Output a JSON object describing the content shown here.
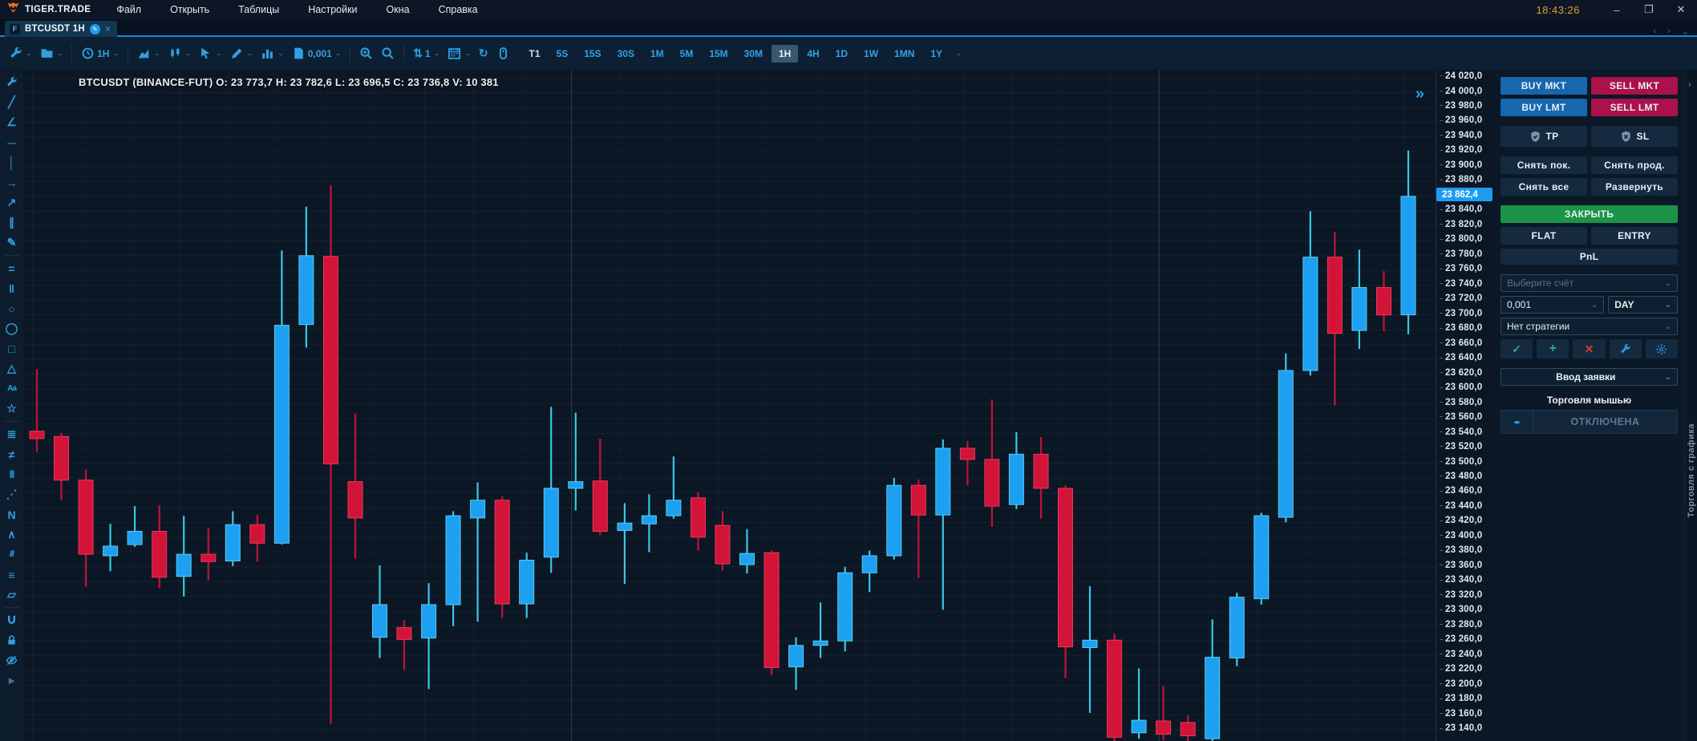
{
  "window": {
    "title": "TIGER.TRADE",
    "clock": "18:43:26",
    "menu": [
      "Файл",
      "Открыть",
      "Таблицы",
      "Настройки",
      "Окна",
      "Справка"
    ],
    "controls": {
      "minimize": "–",
      "restore": "❐",
      "close": "✕"
    }
  },
  "tab": {
    "badge": "F",
    "title": "BTCUSDT 1H"
  },
  "toolbar": {
    "items": [
      {
        "name": "wrench-icon",
        "icon": "wrench",
        "caret": true
      },
      {
        "name": "folder-icon",
        "icon": "folder",
        "caret": true
      },
      {
        "type": "divider"
      },
      {
        "name": "interval-clock-icon",
        "icon": "clock",
        "text": "1H",
        "caret": true
      },
      {
        "type": "divider"
      },
      {
        "name": "area-chart-icon",
        "icon": "area",
        "caret": true
      },
      {
        "name": "chart-style-icon",
        "icon": "candles",
        "caret": true
      },
      {
        "name": "cursor-icon",
        "icon": "cursor",
        "caret": true
      },
      {
        "name": "draw-pencil-icon",
        "icon": "pencil",
        "caret": true
      },
      {
        "name": "volume-columns-icon",
        "icon": "columns",
        "caret": true
      },
      {
        "name": "tick-size-icon",
        "icon": "document",
        "text": "0,001",
        "caret": true
      },
      {
        "type": "divider"
      },
      {
        "name": "zoom-in-icon",
        "icon": "zoomin"
      },
      {
        "name": "zoom-out-icon",
        "icon": "zoomout"
      },
      {
        "type": "divider"
      },
      {
        "name": "sort-scale-icon",
        "glyph": "⇅",
        "text": "1",
        "caret": true
      },
      {
        "name": "calendar-icon",
        "icon": "calendar",
        "caret": true
      },
      {
        "name": "refresh-icon",
        "glyph": "↻"
      },
      {
        "name": "mouse-icon",
        "icon": "mouse"
      }
    ],
    "timeframes": [
      "T1",
      "5S",
      "15S",
      "30S",
      "1M",
      "5M",
      "15M",
      "30M",
      "1H",
      "4H",
      "1D",
      "1W",
      "1MN",
      "1Y"
    ],
    "timeframe_selected": "1H",
    "collapse_glyph": "⌄"
  },
  "left_tools": [
    {
      "name": "wrench-icon",
      "icon": "wrench",
      "caret": true
    },
    {
      "name": "trend-line-icon",
      "glyph": "╱"
    },
    {
      "name": "angle-tool-icon",
      "glyph": "∠"
    },
    {
      "name": "horizontal-line-icon",
      "glyph": "─"
    },
    {
      "name": "vertical-line-icon",
      "glyph": "│"
    },
    {
      "name": "arrow-right-icon",
      "glyph": "→"
    },
    {
      "name": "arrow-up-right-icon",
      "glyph": "↗"
    },
    {
      "name": "parallel-lines-icon",
      "glyph": "∥"
    },
    {
      "name": "brush-icon",
      "glyph": "✎"
    },
    {
      "type": "divider"
    },
    {
      "name": "horizontal-channel-icon",
      "glyph": "="
    },
    {
      "name": "vertical-channel-icon",
      "glyph": "‖"
    },
    {
      "name": "circle-tool-icon",
      "glyph": "○"
    },
    {
      "name": "ellipse-tool-icon",
      "glyph": "◯"
    },
    {
      "name": "rectangle-tool-icon",
      "glyph": "□"
    },
    {
      "name": "triangle-tool-icon",
      "glyph": "△"
    },
    {
      "name": "text-tool-icon",
      "glyph": "Aa",
      "small": true
    },
    {
      "name": "star-tool-icon",
      "glyph": "☆"
    },
    {
      "type": "divider"
    },
    {
      "name": "fib-retracement-icon",
      "glyph": "≣"
    },
    {
      "name": "fib-extension-icon",
      "glyph": "≠"
    },
    {
      "name": "vertical-bars-icon",
      "glyph": "|||",
      "small": true
    },
    {
      "name": "gann-fan-icon",
      "glyph": "⋰"
    },
    {
      "name": "zigzag-icon",
      "glyph": "N"
    },
    {
      "name": "caret-pattern-icon",
      "glyph": "∧"
    },
    {
      "name": "hatch-lines-icon",
      "glyph": "///",
      "small": true
    },
    {
      "name": "levels-icon",
      "glyph": "≡"
    },
    {
      "name": "ruler-icon",
      "glyph": "▱"
    },
    {
      "type": "divider"
    },
    {
      "name": "magnet-icon",
      "icon": "magnet"
    },
    {
      "name": "lock-icon",
      "icon": "lock"
    },
    {
      "name": "eye-off-icon",
      "icon": "eyeoff"
    },
    {
      "name": "collapse-tools-icon",
      "glyph": "▸",
      "dim": true
    }
  ],
  "chart": {
    "info": "BTCUSDT (BINANCE-FUT)  O: 23 773,7  H: 23 782,6  L: 23 696,5  C: 23 736,8  V: 10 381",
    "collapse_glyph": "»"
  },
  "chart_data": {
    "type": "candlestick",
    "symbol": "BTCUSDT",
    "exchange": "BINANCE-FUT",
    "timeframe": "1H",
    "info_values": {
      "open": 23773.7,
      "high": 23782.6,
      "low": 23696.5,
      "close": 23736.8,
      "volume": 10381
    },
    "y_axis": {
      "min": 23140,
      "max": 24020,
      "step": 20,
      "format": "space-thousands, comma-decimal"
    },
    "last_price": 23862.4,
    "last_price_label": "23 862,4",
    "up_color": "#1ea0f2",
    "up_border": "#55cdec",
    "up_wick": "#38c8e4",
    "down_color": "#d21438",
    "down_border": "#e8395c",
    "down_wick": "#c21337",
    "grid": "on",
    "candles_ohlc": [
      [
        23543,
        23627,
        23515,
        23533
      ],
      [
        23536,
        23541,
        23450,
        23477
      ],
      [
        23477,
        23491,
        23333,
        23377
      ],
      [
        23375,
        23418,
        23354,
        23388
      ],
      [
        23390,
        23442,
        23387,
        23408
      ],
      [
        23408,
        23443,
        23331,
        23346
      ],
      [
        23347,
        23429,
        23320,
        23377
      ],
      [
        23377,
        23412,
        23342,
        23367
      ],
      [
        23368,
        23435,
        23361,
        23417
      ],
      [
        23417,
        23430,
        23367,
        23392
      ],
      [
        23392,
        23787,
        23390,
        23686
      ],
      [
        23687,
        23846,
        23656,
        23780
      ],
      [
        23779,
        23875,
        23148,
        23499
      ],
      [
        23475,
        23567,
        23371,
        23426
      ],
      [
        23265,
        23362,
        23237,
        23309
      ],
      [
        23278,
        23288,
        23221,
        23262
      ],
      [
        23264,
        23338,
        23195,
        23309
      ],
      [
        23309,
        23435,
        23280,
        23429
      ],
      [
        23426,
        23474,
        23286,
        23450
      ],
      [
        23450,
        23455,
        23291,
        23310
      ],
      [
        23310,
        23379,
        23291,
        23369
      ],
      [
        23373,
        23576,
        23352,
        23466
      ],
      [
        23466,
        23568,
        23436,
        23475
      ],
      [
        23476,
        23533,
        23403,
        23408
      ],
      [
        23409,
        23446,
        23337,
        23419
      ],
      [
        23418,
        23458,
        23380,
        23429
      ],
      [
        23429,
        23509,
        23425,
        23450
      ],
      [
        23453,
        23461,
        23382,
        23400
      ],
      [
        23416,
        23435,
        23355,
        23364
      ],
      [
        23363,
        23411,
        23351,
        23378
      ],
      [
        23379,
        23382,
        23214,
        23224
      ],
      [
        23225,
        23265,
        23194,
        23254
      ],
      [
        23254,
        23312,
        23237,
        23260
      ],
      [
        23260,
        23360,
        23246,
        23352
      ],
      [
        23352,
        23382,
        23326,
        23375
      ],
      [
        23375,
        23480,
        23370,
        23470
      ],
      [
        23470,
        23478,
        23345,
        23430
      ],
      [
        23430,
        23532,
        23302,
        23520
      ],
      [
        23520,
        23530,
        23470,
        23505
      ],
      [
        23505,
        23586,
        23414,
        23442
      ],
      [
        23444,
        23542,
        23438,
        23512
      ],
      [
        23512,
        23535,
        23425,
        23466
      ],
      [
        23466,
        23470,
        23210,
        23252
      ],
      [
        23251,
        23334,
        23163,
        23261
      ],
      [
        23261,
        23270,
        23125,
        23130
      ],
      [
        23136,
        23223,
        23128,
        23153
      ],
      [
        23152,
        23199,
        23126,
        23134
      ],
      [
        23150,
        23160,
        23122,
        23132
      ],
      [
        23128,
        23289,
        23124,
        23238
      ],
      [
        23237,
        23325,
        23226,
        23319
      ],
      [
        23317,
        23433,
        23309,
        23429
      ],
      [
        23427,
        23648,
        23420,
        23625
      ],
      [
        23625,
        23840,
        23618,
        23778
      ],
      [
        23778,
        23812,
        23578,
        23675
      ],
      [
        23679,
        23788,
        23654,
        23737
      ],
      [
        23737,
        23759,
        23678,
        23700
      ],
      [
        23700,
        23922,
        23674,
        23860
      ]
    ]
  },
  "panel": {
    "buy_mkt": "BUY MKT",
    "sell_mkt": "SELL MKT",
    "buy_lmt": "BUY LMT",
    "sell_lmt": "SELL LMT",
    "tp": "TP",
    "sl": "SL",
    "cancel_buy": "Снять пок.",
    "cancel_sell": "Снять прод.",
    "cancel_all": "Снять все",
    "reverse": "Развернуть",
    "close_position": "ЗАКРЫТЬ",
    "flat": "FLAT",
    "entry": "ENTRY",
    "pnl": "PnL",
    "account_placeholder": "Выберите счёт",
    "quantity": "0,001",
    "tif": "DAY",
    "strategy": "Нет стратегии",
    "order_entry": "Ввод заявки",
    "mouse_trading": "Торговля мышью",
    "mouse_state": "ОТКЛЮЧЕНА"
  },
  "side_strip": {
    "label": "Торговля с графика",
    "expand_glyph": "›"
  },
  "colors": {
    "accent_blue": "#1e9bef",
    "buy_blue": "#1667ad",
    "sell_crimson": "#ab114a",
    "close_green": "#1b9447",
    "clock_amber": "#e0a03c",
    "background": "#0c1725"
  }
}
